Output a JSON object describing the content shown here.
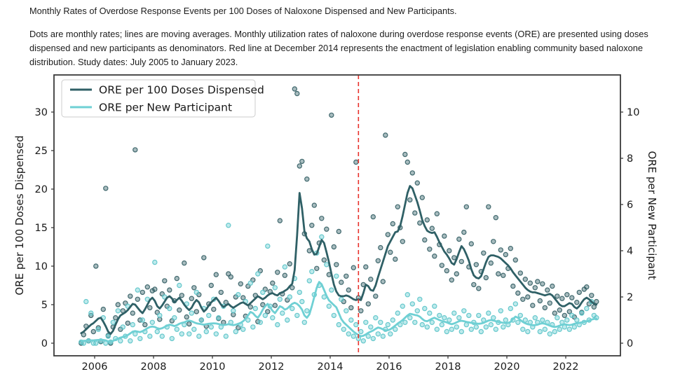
{
  "figure": {
    "title": "Monthly Rates of Overdose Response Events per 100 Doses of Naloxone Dispensed and New Participants.",
    "caption": "Dots are monthly rates; lines are moving averages. Monthly utilization rates of naloxone during overdose response events (ORE) are presented using doses dispensed and new participants as denominators. Red line at December 2014 represents the enactment of legislation enabling community based naloxone distribution. Study dates: July 2005 to January 2023."
  },
  "chart_data": {
    "type": "scatter",
    "x_start_year": 2005.5417,
    "x_step": "1 month",
    "x_ticks": [
      2006,
      2008,
      2010,
      2012,
      2014,
      2016,
      2018,
      2020,
      2022
    ],
    "left_axis": {
      "label": "ORE per 100 Doses Dispensed",
      "ticks": [
        0,
        5,
        10,
        15,
        20,
        25,
        30
      ],
      "range": [
        -1.6,
        34.8
      ]
    },
    "right_axis": {
      "label": "ORE per New Participant",
      "ticks": [
        0,
        2,
        4,
        6,
        8,
        10
      ],
      "range": [
        -0.55,
        11.6
      ]
    },
    "vline": {
      "x": 2014.96,
      "color": "#e8322c",
      "style": "dashed",
      "meaning": "December 2014 legislation"
    },
    "legend": [
      {
        "label": "ORE per 100 Doses Dispensed",
        "color": "#2f6066"
      },
      {
        "label": "ORE per New Participant",
        "color": "#6fd0d4"
      }
    ],
    "series": [
      {
        "name": "ORE per 100 Doses Dispensed",
        "axis": "left",
        "color": "#2f6066",
        "dot_fill": "rgba(47,96,102,0.42)",
        "dot_edge": "rgba(40,85,90,0.85)",
        "dots": [
          0.0,
          1.1,
          2.2,
          0.3,
          3.6,
          1.5,
          10.0,
          2.0,
          0.2,
          4.4,
          20.1,
          1.0,
          0.0,
          2.1,
          3.3,
          5.0,
          1.8,
          4.2,
          5.2,
          2.6,
          6.1,
          3.9,
          25.1,
          5.7,
          3.0,
          6.6,
          2.4,
          7.3,
          4.6,
          6.8,
          7.0,
          4.0,
          3.1,
          6.4,
          8.1,
          4.8,
          6.9,
          2.9,
          5.5,
          8.4,
          4.3,
          6.2,
          10.4,
          3.4,
          2.5,
          5.8,
          7.2,
          4.1,
          6.3,
          3.0,
          11.1,
          2.2,
          5.1,
          7.5,
          4.4,
          8.9,
          3.2,
          6.6,
          2.7,
          5.3,
          9.0,
          8.6,
          3.7,
          6.0,
          2.0,
          7.7,
          5.9,
          3.5,
          7.4,
          4.7,
          8.2,
          6.2,
          2.8,
          9.4,
          5.0,
          7.0,
          4.1,
          6.7,
          7.8,
          4.9,
          9.2,
          15.9,
          6.4,
          8.8,
          5.6,
          10.3,
          7.2,
          33.0,
          32.4,
          23.0,
          23.6,
          14.2,
          21.3,
          12.0,
          15.3,
          17.9,
          9.7,
          13.0,
          16.2,
          10.8,
          14.8,
          8.9,
          29.6,
          12.5,
          10.2,
          14.5,
          7.9,
          5.4,
          8.7,
          6.9,
          4.6,
          9.8,
          23.5,
          5.9,
          4.2,
          7.6,
          9.9,
          5.1,
          8.3,
          16.4,
          6.1,
          10.7,
          12.4,
          8.0,
          27.0,
          14.1,
          11.8,
          15.5,
          10.9,
          17.7,
          15.0,
          13.2,
          24.5,
          23.5,
          18.6,
          22.1,
          16.9,
          20.8,
          15.6,
          18.9,
          13.4,
          16.0,
          12.2,
          14.9,
          11.3,
          16.8,
          12.8,
          10.1,
          13.9,
          9.4,
          12.0,
          8.2,
          11.1,
          9.0,
          13.5,
          10.6,
          14.4,
          17.7,
          9.9,
          12.9,
          7.6,
          10.2,
          7.1,
          9.3,
          11.7,
          8.5,
          17.7,
          10.4,
          13.2,
          16.3,
          9.0,
          12.1,
          8.8,
          11.5,
          9.7,
          12.3,
          7.4,
          10.8,
          6.5,
          9.1,
          5.7,
          8.3,
          6.0,
          7.8,
          4.9,
          7.2,
          8.0,
          5.5,
          7.7,
          4.6,
          6.9,
          5.2,
          7.4,
          3.9,
          6.1,
          4.3,
          5.8,
          3.6,
          6.3,
          4.1,
          5.9,
          3.4,
          5.3,
          6.6,
          4.0,
          7.0,
          7.3,
          5.1,
          6.2,
          4.7,
          5.4
        ],
        "line": [
          1.3,
          1.5,
          1.8,
          2.1,
          2.4,
          2.6,
          2.9,
          3.2,
          3.3,
          2.8,
          2.2,
          1.5,
          1.2,
          1.6,
          2.4,
          3.1,
          3.6,
          3.8,
          4.0,
          4.3,
          4.7,
          5.1,
          5.0,
          4.6,
          4.2,
          3.9,
          4.4,
          5.0,
          5.6,
          5.9,
          5.5,
          4.8,
          4.5,
          4.9,
          5.4,
          5.9,
          6.1,
          5.8,
          5.3,
          5.6,
          5.9,
          5.5,
          5.0,
          4.6,
          4.3,
          4.6,
          5.2,
          5.6,
          5.3,
          4.6,
          4.1,
          4.4,
          4.9,
          5.3,
          5.6,
          5.9,
          5.5,
          5.0,
          4.7,
          4.9,
          5.1,
          4.8,
          4.6,
          4.8,
          5.0,
          5.2,
          5.3,
          5.1,
          4.9,
          5.2,
          5.5,
          5.8,
          6.1,
          5.9,
          5.7,
          5.9,
          6.2,
          6.4,
          6.5,
          6.3,
          6.2,
          6.5,
          6.6,
          6.8,
          7.0,
          7.4,
          7.7,
          9.5,
          14.0,
          19.5,
          17.5,
          14.5,
          13.6,
          13.2,
          12.2,
          11.5,
          11.6,
          12.5,
          13.4,
          13.0,
          11.8,
          10.5,
          9.0,
          7.6,
          6.7,
          6.2,
          6.1,
          6.1,
          6.2,
          6.1,
          5.9,
          5.7,
          5.6,
          5.7,
          5.6,
          6.5,
          7.6,
          7.4,
          6.9,
          6.8,
          7.5,
          8.6,
          9.6,
          10.6,
          11.6,
          12.6,
          13.2,
          13.8,
          14.4,
          14.5,
          15.2,
          16.5,
          18.0,
          19.5,
          20.4,
          20.1,
          19.2,
          18.3,
          17.2,
          16.0,
          15.2,
          14.6,
          14.4,
          14.3,
          14.4,
          13.8,
          13.1,
          12.5,
          11.9,
          11.5,
          11.0,
          10.4,
          10.2,
          10.9,
          11.8,
          12.6,
          12.2,
          11.5,
          10.7,
          9.6,
          8.8,
          8.5,
          8.4,
          8.7,
          9.6,
          10.5,
          11.2,
          11.4,
          11.4,
          11.3,
          11.2,
          11.0,
          10.7,
          10.4,
          10.1,
          9.7,
          9.2,
          8.8,
          8.4,
          8.0,
          7.6,
          7.2,
          6.9,
          6.7,
          6.6,
          6.6,
          6.5,
          6.4,
          6.3,
          6.2,
          6.3,
          6.4,
          6.2,
          5.8,
          5.4,
          5.0,
          4.8,
          4.8,
          5.0,
          5.2,
          5.1,
          4.7,
          4.5,
          4.8,
          5.3,
          5.7,
          5.9,
          5.7,
          5.4,
          5.1,
          5.0
        ]
      },
      {
        "name": "ORE per New Participant",
        "axis": "right",
        "color": "#6fd0d4",
        "dot_fill": "rgba(111,208,212,0.45)",
        "dot_edge": "rgba(90,195,200,0.9)",
        "dots": [
          0.05,
          0.0,
          1.8,
          0.1,
          1.3,
          0.0,
          0.0,
          0.6,
          0.1,
          1.1,
          0.0,
          0.3,
          0.05,
          0.9,
          0.2,
          1.4,
          0.1,
          0.7,
          0.3,
          1.6,
          0.1,
          0.8,
          0.4,
          2.3,
          0.2,
          1.0,
          0.5,
          1.9,
          0.3,
          0.9,
          3.5,
          0.5,
          1.2,
          0.3,
          2.0,
          0.7,
          1.5,
          0.2,
          1.1,
          0.6,
          2.5,
          0.4,
          0.8,
          1.7,
          0.4,
          1.3,
          0.6,
          2.2,
          0.3,
          1.0,
          1.5,
          0.5,
          1.2,
          0.7,
          1.9,
          0.4,
          1.1,
          0.7,
          1.6,
          0.3,
          5.1,
          0.9,
          1.4,
          0.5,
          2.1,
          0.8,
          0.6,
          1.8,
          1.0,
          2.6,
          0.7,
          1.5,
          3.0,
          0.9,
          2.2,
          1.2,
          4.2,
          1.6,
          1.1,
          2.4,
          0.8,
          1.9,
          1.3,
          3.3,
          1.0,
          2.0,
          1.5,
          2.8,
          1.2,
          2.2,
          1.8,
          0.9,
          1.4,
          2.7,
          3.1,
          2.1,
          3.9,
          2.5,
          4.6,
          2.0,
          3.4,
          1.6,
          2.3,
          1.2,
          2.9,
          0.8,
          1.9,
          0.6,
          1.4,
          0.4,
          1.0,
          0.3,
          0.8,
          0.2,
          0.5,
          0.1,
          0.9,
          0.3,
          0.7,
          0.2,
          1.1,
          0.4,
          0.9,
          0.3,
          0.6,
          0.8,
          0.4,
          1.0,
          0.6,
          1.3,
          0.8,
          1.6,
          0.9,
          2.1,
          1.1,
          1.7,
          0.9,
          1.4,
          1.9,
          0.8,
          1.5,
          0.7,
          1.3,
          0.9,
          1.6,
          0.6,
          1.2,
          0.8,
          1.1,
          0.5,
          1.0,
          0.6,
          1.3,
          0.7,
          1.1,
          0.5,
          1.4,
          0.8,
          1.2,
          0.6,
          0.9,
          0.7,
          1.2,
          0.5,
          1.0,
          0.7,
          1.3,
          0.8,
          1.1,
          0.6,
          0.9,
          1.4,
          0.7,
          1.0,
          0.8,
          1.5,
          1.0,
          1.7,
          0.9,
          1.2,
          0.6,
          1.0,
          0.5,
          0.9,
          0.7,
          1.1,
          0.9,
          0.5,
          1.0,
          0.6,
          0.9,
          0.4,
          0.8,
          0.5,
          1.1,
          0.6,
          0.9,
          0.7,
          1.0,
          0.6,
          1.2,
          0.7,
          1.0,
          0.8,
          1.3,
          0.9,
          1.5,
          1.0,
          1.8,
          1.2,
          1.1
        ],
        "line": [
          0.1,
          0.1,
          0.11,
          0.12,
          0.12,
          0.12,
          0.13,
          0.14,
          0.15,
          0.14,
          0.12,
          0.08,
          0.06,
          0.1,
          0.15,
          0.2,
          0.24,
          0.27,
          0.3,
          0.35,
          0.42,
          0.5,
          0.52,
          0.5,
          0.48,
          0.52,
          0.58,
          0.65,
          0.7,
          0.72,
          0.7,
          0.65,
          0.62,
          0.65,
          0.7,
          0.76,
          0.8,
          0.78,
          0.74,
          0.78,
          0.84,
          0.88,
          0.9,
          0.95,
          0.98,
          0.95,
          0.9,
          0.86,
          0.84,
          0.82,
          0.8,
          0.82,
          0.84,
          0.85,
          0.86,
          0.85,
          0.83,
          0.8,
          0.78,
          0.8,
          0.82,
          0.8,
          0.78,
          0.8,
          0.84,
          0.88,
          0.95,
          1.05,
          1.2,
          1.35,
          1.3,
          1.18,
          1.1,
          1.25,
          1.45,
          1.6,
          1.7,
          1.55,
          1.4,
          1.3,
          1.45,
          1.6,
          1.55,
          1.45,
          1.5,
          1.6,
          1.7,
          1.75,
          1.7,
          1.6,
          1.45,
          1.2,
          1.1,
          1.25,
          1.6,
          2.0,
          2.4,
          2.65,
          2.55,
          2.3,
          2.05,
          1.85,
          1.75,
          1.65,
          1.55,
          1.3,
          1.05,
          0.9,
          0.8,
          0.7,
          0.6,
          0.5,
          0.42,
          0.35,
          0.3,
          0.32,
          0.38,
          0.45,
          0.5,
          0.55,
          0.62,
          0.68,
          0.65,
          0.6,
          0.55,
          0.56,
          0.6,
          0.68,
          0.76,
          0.85,
          0.92,
          1.0,
          1.1,
          1.2,
          1.27,
          1.25,
          1.22,
          1.2,
          1.15,
          1.05,
          0.97,
          0.95,
          1.0,
          1.06,
          1.1,
          1.05,
          1.0,
          0.96,
          0.93,
          0.9,
          0.85,
          0.82,
          0.85,
          0.9,
          0.95,
          0.97,
          0.95,
          0.92,
          0.9,
          0.88,
          0.86,
          0.85,
          0.84,
          0.85,
          0.88,
          0.93,
          0.98,
          1.0,
          0.98,
          0.95,
          0.92,
          0.9,
          0.88,
          0.87,
          0.88,
          0.92,
          1.05,
          1.15,
          1.1,
          1.0,
          0.92,
          0.86,
          0.82,
          0.8,
          0.78,
          0.78,
          0.8,
          0.84,
          0.86,
          0.84,
          0.8,
          0.76,
          0.72,
          0.7,
          0.72,
          0.76,
          0.8,
          0.82,
          0.8,
          0.78,
          0.8,
          0.84,
          0.86,
          0.88,
          0.9,
          0.92,
          0.95,
          0.98,
          1.02,
          1.05,
          1.06
        ]
      }
    ]
  }
}
